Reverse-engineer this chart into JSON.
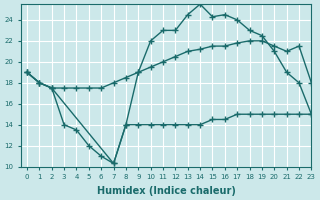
{
  "xlabel": "Humidex (Indice chaleur)",
  "background_color": "#cce8ea",
  "line_color": "#1a6b6b",
  "grid_color": "#ffffff",
  "xlim": [
    -0.5,
    23
  ],
  "ylim": [
    10,
    25.5
  ],
  "yticks": [
    10,
    12,
    14,
    16,
    18,
    20,
    22,
    24
  ],
  "xticks": [
    0,
    1,
    2,
    3,
    4,
    5,
    6,
    7,
    8,
    9,
    10,
    11,
    12,
    13,
    14,
    15,
    16,
    17,
    18,
    19,
    20,
    21,
    22,
    23
  ],
  "line_bottom_x": [
    0,
    1,
    2,
    3,
    4,
    5,
    6,
    7,
    8,
    9,
    10,
    11,
    12,
    13,
    14,
    15,
    16,
    17,
    18,
    19,
    20,
    21,
    22,
    23
  ],
  "line_bottom_y": [
    19.0,
    18.0,
    17.5,
    14.0,
    13.5,
    12.0,
    11.0,
    10.3,
    14.0,
    14.0,
    14.0,
    14.0,
    14.0,
    14.0,
    14.0,
    14.5,
    14.5,
    15.0,
    15.0,
    15.0,
    15.0,
    15.0,
    15.0,
    15.0
  ],
  "line_middle_x": [
    0,
    1,
    2,
    3,
    4,
    5,
    6,
    7,
    8,
    9,
    10,
    11,
    12,
    13,
    14,
    15,
    16,
    17,
    18,
    19,
    20,
    21,
    22,
    23
  ],
  "line_middle_y": [
    19.0,
    18.0,
    17.5,
    17.5,
    17.5,
    17.5,
    17.5,
    18.0,
    18.5,
    19.0,
    19.5,
    20.0,
    20.5,
    21.0,
    21.2,
    21.5,
    21.5,
    21.8,
    22.0,
    22.0,
    21.5,
    21.0,
    21.5,
    18.0
  ],
  "line_top_x": [
    0,
    1,
    2,
    7,
    8,
    9,
    10,
    11,
    12,
    13,
    14,
    15,
    16,
    17,
    18,
    19,
    20,
    21,
    22,
    23
  ],
  "line_top_y": [
    19.0,
    18.0,
    17.5,
    10.3,
    14.0,
    19.0,
    22.0,
    23.0,
    23.0,
    24.5,
    25.5,
    24.3,
    24.5,
    24.0,
    23.0,
    22.5,
    21.0,
    19.0,
    18.0,
    15.0
  ],
  "marker": "+",
  "markersize": 4,
  "linewidth": 1.0
}
